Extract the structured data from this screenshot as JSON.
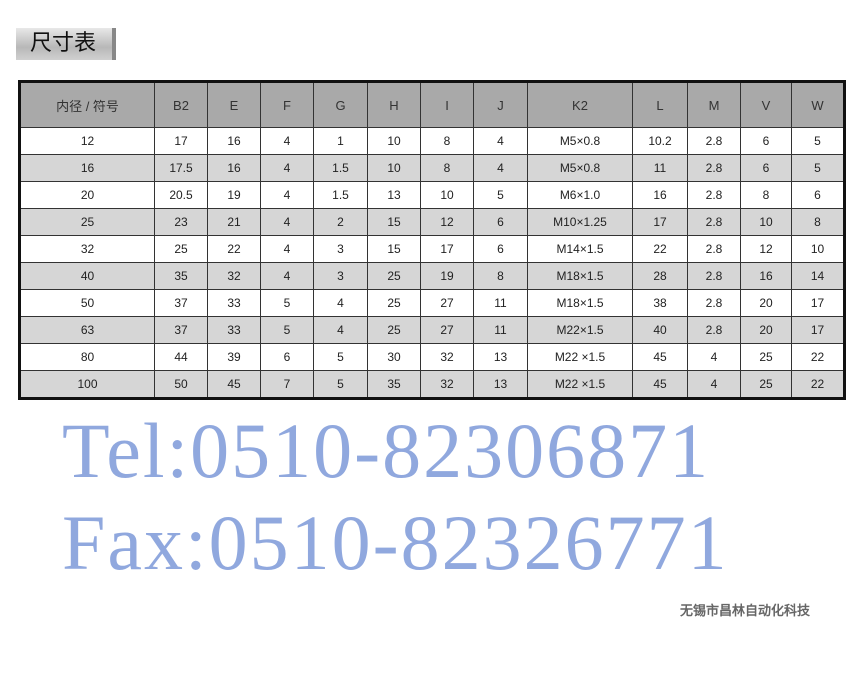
{
  "title": "尺寸表",
  "headers": [
    "内径 / 符号",
    "B2",
    "E",
    "F",
    "G",
    "H",
    "I",
    "J",
    "K2",
    "L",
    "M",
    "V",
    "W"
  ],
  "rows": [
    [
      "12",
      "17",
      "16",
      "4",
      "1",
      "10",
      "8",
      "4",
      "M5×0.8",
      "10.2",
      "2.8",
      "6",
      "5"
    ],
    [
      "16",
      "17.5",
      "16",
      "4",
      "1.5",
      "10",
      "8",
      "4",
      "M5×0.8",
      "11",
      "2.8",
      "6",
      "5"
    ],
    [
      "20",
      "20.5",
      "19",
      "4",
      "1.5",
      "13",
      "10",
      "5",
      "M6×1.0",
      "16",
      "2.8",
      "8",
      "6"
    ],
    [
      "25",
      "23",
      "21",
      "4",
      "2",
      "15",
      "12",
      "6",
      "M10×1.25",
      "17",
      "2.8",
      "10",
      "8"
    ],
    [
      "32",
      "25",
      "22",
      "4",
      "3",
      "15",
      "17",
      "6",
      "M14×1.5",
      "22",
      "2.8",
      "12",
      "10"
    ],
    [
      "40",
      "35",
      "32",
      "4",
      "3",
      "25",
      "19",
      "8",
      "M18×1.5",
      "28",
      "2.8",
      "16",
      "14"
    ],
    [
      "50",
      "37",
      "33",
      "5",
      "4",
      "25",
      "27",
      "11",
      "M18×1.5",
      "38",
      "2.8",
      "20",
      "17"
    ],
    [
      "63",
      "37",
      "33",
      "5",
      "4",
      "25",
      "27",
      "11",
      "M22×1.5",
      "40",
      "2.8",
      "20",
      "17"
    ],
    [
      "80",
      "44",
      "39",
      "6",
      "5",
      "30",
      "32",
      "13",
      "M22 ×1.5",
      "45",
      "4",
      "25",
      "22"
    ],
    [
      "100",
      "50",
      "45",
      "7",
      "5",
      "35",
      "32",
      "13",
      "M22 ×1.5",
      "45",
      "4",
      "25",
      "22"
    ]
  ],
  "watermark": {
    "tel": "Tel:0510-82306871",
    "fax": "Fax:0510-82326771",
    "company": "无锡市昌林自动化科技"
  }
}
